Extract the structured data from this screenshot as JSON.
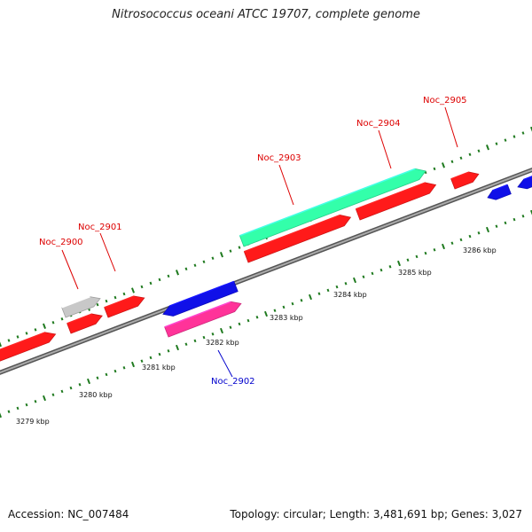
{
  "title": "Nitrosococcus oceani ATCC 19707, complete genome",
  "footer": {
    "accession": "Accession: NC_007484",
    "summary": "Topology: circular; Length: 3,481,691 bp; Genes: 3,027"
  },
  "colors": {
    "forward_cds": "#ff1a1a",
    "reverse_cds": "#1010e8",
    "rna": "#ff3399",
    "misc": "#33ffaa",
    "pseudo": "#c8c8c8",
    "backbone": "#8a8a8a",
    "ticks": "#1f7a1f",
    "forward_label": "#dd0000",
    "reverse_label": "#0000cc"
  },
  "kbp_labels": [
    "3279 kbp",
    "3280 kbp",
    "3281 kbp",
    "3282 kbp",
    "3283 kbp",
    "3284 kbp",
    "3285 kbp",
    "3286 kbp"
  ],
  "gene_labels": [
    {
      "name": "Noc_2900",
      "strand": "forward"
    },
    {
      "name": "Noc_2901",
      "strand": "forward"
    },
    {
      "name": "Noc_2902",
      "strand": "reverse"
    },
    {
      "name": "Noc_2903",
      "strand": "forward"
    },
    {
      "name": "Noc_2904",
      "strand": "forward"
    },
    {
      "name": "Noc_2905",
      "strand": "forward"
    }
  ],
  "features": [
    {
      "track": "forward",
      "type": "cds",
      "color": "forward_cds"
    },
    {
      "track": "forward",
      "type": "cds",
      "color": "forward_cds"
    },
    {
      "track": "forward",
      "type": "cds",
      "color": "forward_cds"
    },
    {
      "track": "forward",
      "type": "cds",
      "color": "forward_cds"
    },
    {
      "track": "forward",
      "type": "cds",
      "color": "forward_cds"
    },
    {
      "track": "forward",
      "type": "cds",
      "color": "forward_cds"
    },
    {
      "track": "forward-outer",
      "type": "pseudo",
      "color": "pseudo"
    },
    {
      "track": "forward-outer",
      "type": "misc",
      "color": "misc"
    },
    {
      "track": "reverse",
      "type": "cds",
      "color": "reverse_cds"
    },
    {
      "track": "reverse",
      "type": "cds",
      "color": "reverse_cds"
    },
    {
      "track": "reverse",
      "type": "cds",
      "color": "reverse_cds"
    },
    {
      "track": "reverse-inner",
      "type": "rna",
      "color": "rna"
    }
  ]
}
